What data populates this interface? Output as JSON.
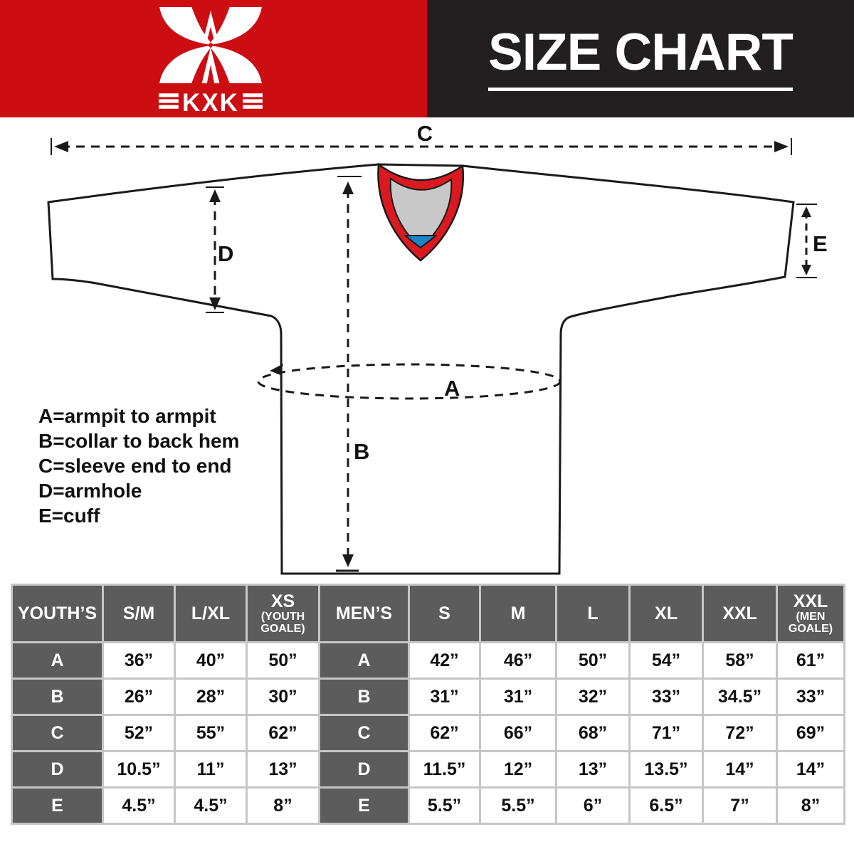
{
  "header": {
    "brand": "KXK",
    "title": "SIZE CHART"
  },
  "colors": {
    "brand_red": "#cc0e13",
    "panel_black": "#231f20",
    "collar_red": "#da1a20",
    "collar_gray": "#c8c8c8",
    "collar_blue": "#1d84c5",
    "table_header_gray": "#5d5c5c",
    "grid_line": "#c6c6c6"
  },
  "diagram": {
    "letters": {
      "a": "A",
      "b": "B",
      "c": "C",
      "d": "D",
      "e": "E"
    },
    "legend": [
      "A=armpit to armpit",
      "B=collar to back hem",
      "C=sleeve end to end",
      "D=armhole",
      "E=cuff"
    ]
  },
  "table": {
    "columns": [
      {
        "label": "YOUTH’S",
        "sub": ""
      },
      {
        "label": "S/M",
        "sub": ""
      },
      {
        "label": "L/XL",
        "sub": ""
      },
      {
        "label": "XS",
        "sub": "(YOUTH GOALE)"
      },
      {
        "label": "MEN’S",
        "sub": ""
      },
      {
        "label": "S",
        "sub": ""
      },
      {
        "label": "M",
        "sub": ""
      },
      {
        "label": "L",
        "sub": ""
      },
      {
        "label": "XL",
        "sub": ""
      },
      {
        "label": "XXL",
        "sub": ""
      },
      {
        "label": "XXL",
        "sub": "(MEN GOALE)"
      }
    ],
    "rows": [
      {
        "label": "A",
        "youth": [
          "36”",
          "40”",
          "50”"
        ],
        "men": [
          "42”",
          "46”",
          "50”",
          "54”",
          "58”",
          "61”"
        ]
      },
      {
        "label": "B",
        "youth": [
          "26”",
          "28”",
          "30”"
        ],
        "men": [
          "31”",
          "31”",
          "32”",
          "33”",
          "34.5”",
          "33”"
        ]
      },
      {
        "label": "C",
        "youth": [
          "52”",
          "55”",
          "62”"
        ],
        "men": [
          "62”",
          "66”",
          "68”",
          "71”",
          "72”",
          "69”"
        ]
      },
      {
        "label": "D",
        "youth": [
          "10.5”",
          "11”",
          "13”"
        ],
        "men": [
          "11.5”",
          "12”",
          "13”",
          "13.5”",
          "14”",
          "14”"
        ]
      },
      {
        "label": "E",
        "youth": [
          "4.5”",
          "4.5”",
          "8”"
        ],
        "men": [
          "5.5”",
          "5.5”",
          "6”",
          "6.5”",
          "7”",
          "8”"
        ]
      }
    ]
  }
}
